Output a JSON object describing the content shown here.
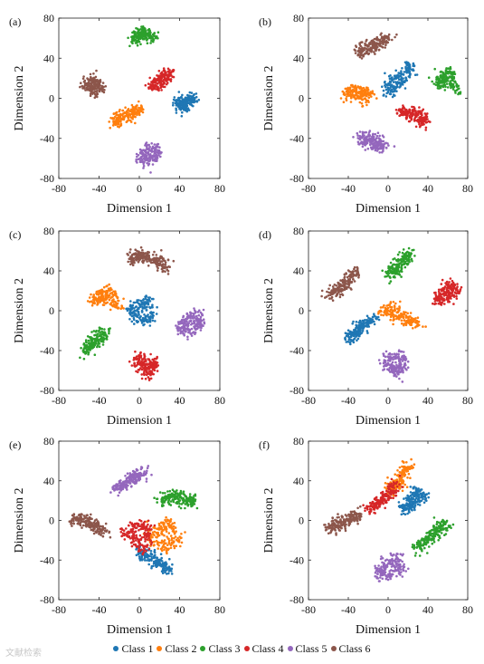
{
  "watermark": "文献检索",
  "chart_data": [
    {
      "type": "scatter",
      "panel": "(a)",
      "xlabel": "Dimension 1",
      "ylabel": "Dimension 2",
      "xlim": [
        -80,
        80
      ],
      "ylim": [
        -80,
        80
      ],
      "xticks": [
        -80,
        -40,
        0,
        40,
        80
      ],
      "yticks": [
        -80,
        -40,
        0,
        40,
        80
      ],
      "clusters": [
        {
          "class": "Class 1",
          "x": [
            40,
            48,
            53,
            46,
            40
          ],
          "y": [
            -8,
            0,
            0,
            -10,
            -4
          ]
        },
        {
          "class": "Class 2",
          "x": [
            -25,
            -15,
            -5,
            0,
            -20
          ],
          "y": [
            -24,
            -18,
            -14,
            -10,
            -20
          ]
        },
        {
          "class": "Class 3",
          "x": [
            -5,
            0,
            5,
            12,
            2
          ],
          "y": [
            58,
            63,
            68,
            60,
            65
          ]
        },
        {
          "class": "Class 4",
          "x": [
            12,
            18,
            25,
            30,
            20
          ],
          "y": [
            12,
            18,
            22,
            25,
            15
          ]
        },
        {
          "class": "Class 5",
          "x": [
            0,
            10,
            18,
            14,
            6
          ],
          "y": [
            -58,
            -50,
            -52,
            -62,
            -60
          ]
        },
        {
          "class": "Class 6",
          "x": [
            -55,
            -45,
            -38,
            -48,
            -42
          ],
          "y": [
            12,
            18,
            10,
            8,
            14
          ]
        }
      ]
    },
    {
      "type": "scatter",
      "panel": "(b)",
      "xlabel": "Dimension 1",
      "ylabel": "Dimension 2",
      "xlim": [
        -80,
        80
      ],
      "ylim": [
        -80,
        80
      ],
      "xticks": [
        -80,
        -40,
        0,
        40,
        80
      ],
      "yticks": [
        -80,
        -40,
        0,
        40,
        80
      ],
      "clusters": [
        {
          "class": "Class 1",
          "x": [
            0,
            10,
            20,
            22,
            5
          ],
          "y": [
            5,
            12,
            25,
            32,
            20
          ]
        },
        {
          "class": "Class 2",
          "x": [
            -40,
            -32,
            -25,
            -18,
            -35
          ],
          "y": [
            2,
            8,
            0,
            5,
            10
          ]
        },
        {
          "class": "Class 3",
          "x": [
            50,
            58,
            62,
            68,
            55
          ],
          "y": [
            12,
            20,
            28,
            8,
            25
          ]
        },
        {
          "class": "Class 4",
          "x": [
            12,
            22,
            32,
            38,
            28
          ],
          "y": [
            -12,
            -14,
            -18,
            -24,
            -20
          ]
        },
        {
          "class": "Class 5",
          "x": [
            -28,
            -20,
            -12,
            -4,
            -16
          ],
          "y": [
            -40,
            -44,
            -50,
            -46,
            -38
          ]
        },
        {
          "class": "Class 6",
          "x": [
            -30,
            -20,
            -10,
            0,
            -15
          ],
          "y": [
            45,
            52,
            55,
            62,
            50
          ]
        }
      ]
    },
    {
      "type": "scatter",
      "panel": "(c)",
      "xlabel": "Dimension 1",
      "ylabel": "Dimension 2",
      "xlim": [
        -80,
        80
      ],
      "ylim": [
        -80,
        80
      ],
      "xticks": [
        -80,
        -40,
        0,
        40,
        80
      ],
      "yticks": [
        -80,
        -40,
        0,
        40,
        80
      ],
      "clusters": [
        {
          "class": "Class 1",
          "x": [
            -10,
            0,
            8,
            12,
            2
          ],
          "y": [
            -2,
            6,
            12,
            -6,
            -10
          ]
        },
        {
          "class": "Class 2",
          "x": [
            -45,
            -38,
            -30,
            -20,
            -35
          ],
          "y": [
            10,
            18,
            20,
            5,
            12
          ]
        },
        {
          "class": "Class 3",
          "x": [
            -55,
            -48,
            -40,
            -35,
            -45
          ],
          "y": [
            -40,
            -34,
            -28,
            -22,
            -32
          ]
        },
        {
          "class": "Class 4",
          "x": [
            -5,
            2,
            10,
            16,
            8
          ],
          "y": [
            -54,
            -46,
            -60,
            -52,
            -64
          ]
        },
        {
          "class": "Class 5",
          "x": [
            40,
            48,
            56,
            62,
            50
          ],
          "y": [
            -18,
            -10,
            -4,
            -14,
            -20
          ]
        },
        {
          "class": "Class 6",
          "x": [
            -10,
            0,
            10,
            28,
            15
          ],
          "y": [
            52,
            58,
            50,
            44,
            54
          ]
        }
      ]
    },
    {
      "type": "scatter",
      "panel": "(d)",
      "xlabel": "Dimension 1",
      "ylabel": "Dimension 2",
      "xlim": [
        -80,
        80
      ],
      "ylim": [
        -80,
        80
      ],
      "xticks": [
        -80,
        -40,
        0,
        40,
        80
      ],
      "yticks": [
        -80,
        -40,
        0,
        40,
        80
      ],
      "clusters": [
        {
          "class": "Class 1",
          "x": [
            -40,
            -32,
            -25,
            -15,
            -30
          ],
          "y": [
            -30,
            -22,
            -14,
            -8,
            -18
          ]
        },
        {
          "class": "Class 2",
          "x": [
            -5,
            5,
            15,
            30,
            18
          ],
          "y": [
            -2,
            4,
            -6,
            -14,
            -10
          ]
        },
        {
          "class": "Class 3",
          "x": [
            0,
            8,
            15,
            22,
            10
          ],
          "y": [
            36,
            44,
            52,
            58,
            40
          ]
        },
        {
          "class": "Class 4",
          "x": [
            48,
            56,
            62,
            70,
            60
          ],
          "y": [
            10,
            18,
            26,
            20,
            14
          ]
        },
        {
          "class": "Class 5",
          "x": [
            -2,
            8,
            16,
            12,
            4
          ],
          "y": [
            -52,
            -44,
            -50,
            -62,
            -58
          ]
        },
        {
          "class": "Class 6",
          "x": [
            -60,
            -50,
            -40,
            -32,
            -45
          ],
          "y": [
            15,
            22,
            30,
            40,
            25
          ]
        }
      ]
    },
    {
      "type": "scatter",
      "panel": "(e)",
      "xlabel": "Dimension 1",
      "ylabel": "Dimension 2",
      "xlim": [
        -80,
        80
      ],
      "ylim": [
        -80,
        80
      ],
      "xticks": [
        -80,
        -40,
        0,
        40,
        80
      ],
      "yticks": [
        -80,
        -40,
        0,
        40,
        80
      ],
      "clusters": [
        {
          "class": "Class 1",
          "x": [
            0,
            10,
            20,
            30,
            15
          ],
          "y": [
            -30,
            -38,
            -44,
            -50,
            -40
          ]
        },
        {
          "class": "Class 2",
          "x": [
            10,
            20,
            30,
            40,
            25
          ],
          "y": [
            -15,
            -8,
            -2,
            -20,
            -28
          ]
        },
        {
          "class": "Class 3",
          "x": [
            20,
            30,
            40,
            55,
            45
          ],
          "y": [
            20,
            24,
            26,
            18,
            20
          ]
        },
        {
          "class": "Class 4",
          "x": [
            -15,
            -5,
            5,
            10,
            0
          ],
          "y": [
            -12,
            -20,
            -28,
            -8,
            -4
          ]
        },
        {
          "class": "Class 5",
          "x": [
            -25,
            -15,
            -5,
            5,
            -10
          ],
          "y": [
            32,
            38,
            44,
            50,
            36
          ]
        },
        {
          "class": "Class 6",
          "x": [
            -65,
            -55,
            -45,
            -35,
            -50
          ],
          "y": [
            0,
            2,
            -6,
            -12,
            -4
          ]
        }
      ]
    },
    {
      "type": "scatter",
      "panel": "(f)",
      "xlabel": "Dimension 1",
      "ylabel": "Dimension 2",
      "xlim": [
        -80,
        80
      ],
      "ylim": [
        -80,
        80
      ],
      "xticks": [
        -80,
        -40,
        0,
        40,
        80
      ],
      "yticks": [
        -80,
        -40,
        0,
        40,
        80
      ],
      "clusters": [
        {
          "class": "Class 1",
          "x": [
            15,
            22,
            28,
            36,
            25
          ],
          "y": [
            10,
            20,
            30,
            24,
            15
          ]
        },
        {
          "class": "Class 2",
          "x": [
            0,
            8,
            16,
            20,
            10
          ],
          "y": [
            30,
            40,
            50,
            55,
            36
          ]
        },
        {
          "class": "Class 3",
          "x": [
            30,
            40,
            48,
            58,
            45
          ],
          "y": [
            -28,
            -20,
            -10,
            -4,
            -15
          ]
        },
        {
          "class": "Class 4",
          "x": [
            -20,
            -10,
            0,
            8,
            -5
          ],
          "y": [
            10,
            18,
            26,
            35,
            20
          ]
        },
        {
          "class": "Class 5",
          "x": [
            -10,
            -2,
            8,
            14,
            0
          ],
          "y": [
            -52,
            -44,
            -38,
            -48,
            -56
          ]
        },
        {
          "class": "Class 6",
          "x": [
            -60,
            -50,
            -40,
            -30,
            -45
          ],
          "y": [
            -8,
            -2,
            0,
            6,
            -4
          ]
        }
      ]
    }
  ],
  "legend": [
    {
      "label": "Class 1",
      "color": "#1f77b4"
    },
    {
      "label": "Class 2",
      "color": "#ff7f0e"
    },
    {
      "label": "Class 3",
      "color": "#2ca02c"
    },
    {
      "label": "Class 4",
      "color": "#d62728"
    },
    {
      "label": "Class 5",
      "color": "#9467bd"
    },
    {
      "label": "Class 6",
      "color": "#8c564b"
    }
  ]
}
